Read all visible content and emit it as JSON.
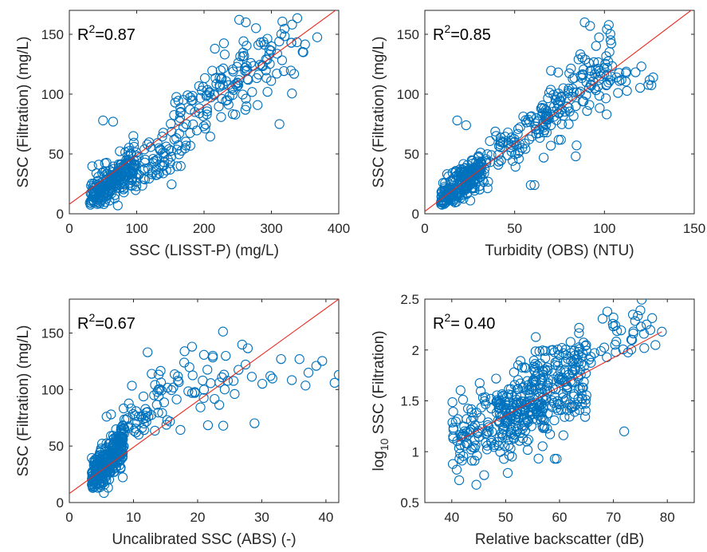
{
  "figure": {
    "colors": {
      "marker": "#0072BD",
      "fit_line": "#E8291C",
      "axes": "#262626"
    }
  },
  "chart_data": [
    {
      "type": "scatter",
      "xlabel": "SSC (LISST-P) (mg/L)",
      "ylabel": "SSC (Filtration) (mg/L)",
      "xlim": [
        0,
        400
      ],
      "ylim": [
        0,
        170
      ],
      "xticks": [
        "0",
        "100",
        "200",
        "300",
        "400"
      ],
      "yticks": [
        "0",
        "50",
        "100",
        "150"
      ],
      "xtick_values": [
        0,
        100,
        200,
        300,
        400
      ],
      "ytick_values": [
        0,
        50,
        100,
        150
      ],
      "annotation": {
        "base": "R",
        "sup": "2",
        "text": "=0.87"
      },
      "fit_line": {
        "x": [
          0,
          400
        ],
        "y": [
          8,
          172
        ]
      },
      "gen": {
        "seed": 11,
        "clusters": [
          {
            "n": 230,
            "x": [
              30,
              100
            ],
            "slope": 0.42,
            "icpt": 1,
            "ns": 8
          },
          {
            "n": 60,
            "x": [
              100,
              175
            ],
            "slope": 0.3,
            "icpt": 6,
            "ns": 10
          },
          {
            "n": 120,
            "x": [
              150,
              300
            ],
            "slope": 0.42,
            "icpt": 8,
            "ns": 13
          },
          {
            "n": 35,
            "x": [
              250,
              370
            ],
            "slope": 0.3,
            "icpt": 42,
            "ns": 16
          }
        ]
      },
      "x": [
        50,
        65,
        72,
        312,
        300,
        262,
        95
      ],
      "y": [
        78,
        77,
        7,
        75,
        140,
        160,
        65
      ]
    },
    {
      "type": "scatter",
      "xlabel": "Turbidity (OBS) (NTU)",
      "ylabel": "SSC (Filtration) (mg/L)",
      "xlim": [
        0,
        150
      ],
      "ylim": [
        0,
        170
      ],
      "xticks": [
        "0",
        "50",
        "100",
        "150"
      ],
      "yticks": [
        "0",
        "50",
        "100",
        "150"
      ],
      "xtick_values": [
        0,
        50,
        100,
        150
      ],
      "ytick_values": [
        0,
        50,
        100,
        150
      ],
      "annotation": {
        "base": "R",
        "sup": "2",
        "text": "=0.85"
      },
      "fit_line": {
        "x": [
          0,
          150
        ],
        "y": [
          2,
          172
        ]
      },
      "gen": {
        "seed": 29,
        "clusters": [
          {
            "n": 220,
            "x": [
              9,
              32
            ],
            "slope": 1.2,
            "icpt": 0,
            "ns": 7
          },
          {
            "n": 90,
            "x": [
              30,
              70
            ],
            "slope": 1.15,
            "icpt": 3,
            "ns": 10
          },
          {
            "n": 120,
            "x": [
              65,
              105
            ],
            "slope": 1.15,
            "icpt": 5,
            "ns": 15
          },
          {
            "n": 20,
            "x": [
              100,
              128
            ],
            "slope": 0.3,
            "icpt": 78,
            "ns": 6
          }
        ]
      },
      "x": [
        18,
        23,
        59,
        61,
        89,
        92,
        84
      ],
      "y": [
        78,
        74,
        24,
        24,
        160,
        157,
        48
      ]
    },
    {
      "type": "scatter",
      "xlabel": "Uncalibrated SSC (ABS) (-)",
      "ylabel": "SSC (Filtration) (mg/L)",
      "xlim": [
        0,
        42
      ],
      "ylim": [
        0,
        180
      ],
      "xticks": [
        "0",
        "10",
        "20",
        "30",
        "40"
      ],
      "yticks": [
        "0",
        "50",
        "100",
        "150"
      ],
      "xtick_values": [
        0,
        10,
        20,
        30,
        40
      ],
      "ytick_values": [
        0,
        50,
        100,
        150
      ],
      "annotation": {
        "base": "R",
        "sup": "2",
        "text": "=0.67"
      },
      "fit_line": {
        "x": [
          0,
          42
        ],
        "y": [
          8,
          180
        ]
      },
      "gen": {
        "seed": 47,
        "clusters": [
          {
            "n": 280,
            "x": [
              3.5,
              8.5
            ],
            "slope": 6.5,
            "icpt": -2,
            "ns": 9
          },
          {
            "n": 60,
            "x": [
              8,
              15
            ],
            "slope": 6,
            "icpt": 10,
            "ns": 14
          },
          {
            "n": 45,
            "x": [
              14,
              28
            ],
            "slope": 2,
            "icpt": 60,
            "ns": 16
          },
          {
            "n": 12,
            "x": [
              25,
              42
            ],
            "slope": 1.5,
            "icpt": 60,
            "ns": 12
          }
        ]
      },
      "x": [
        12.2,
        5.8,
        6.5,
        42,
        38.5,
        33,
        24
      ],
      "y": [
        133,
        76,
        78,
        113,
        121,
        127,
        68
      ]
    },
    {
      "type": "scatter",
      "xlabel": "Relative backscatter (dB)",
      "ylabel": "log10 SSC (Filtration)",
      "ylabel_main": "log",
      "ylabel_sub": "10",
      "ylabel_rest": " SSC (Filtration)",
      "xlim": [
        35,
        85
      ],
      "ylim": [
        0.5,
        2.5
      ],
      "xticks": [
        "40",
        "50",
        "60",
        "70",
        "80"
      ],
      "yticks": [
        "0.5",
        "1",
        "1.5",
        "2",
        "2.5"
      ],
      "xtick_values": [
        40,
        50,
        60,
        70,
        80
      ],
      "ytick_values": [
        0.5,
        1,
        1.5,
        2,
        2.5
      ],
      "annotation": {
        "base": "R",
        "sup": "2",
        "text": "= 0.40"
      },
      "fit_line": {
        "x": [
          41,
          79
        ],
        "y": [
          1.1,
          2.18
        ]
      },
      "gen": {
        "seed": 83,
        "clusters": [
          {
            "n": 180,
            "x": [
              40,
              58
            ],
            "slope": 0.02,
            "icpt": 0.35,
            "ns": 0.17
          },
          {
            "n": 220,
            "x": [
              48,
              65
            ],
            "slope": 0.025,
            "icpt": 0.1,
            "ns": 0.22
          },
          {
            "n": 80,
            "x": [
              55,
              78
            ],
            "slope": 0.02,
            "icpt": 0.7,
            "ns": 0.15
          }
        ]
      },
      "x": [
        46,
        75,
        79,
        70,
        72
      ],
      "y": [
        0.77,
        2.39,
        2.18,
        2.32,
        1.2
      ]
    }
  ]
}
